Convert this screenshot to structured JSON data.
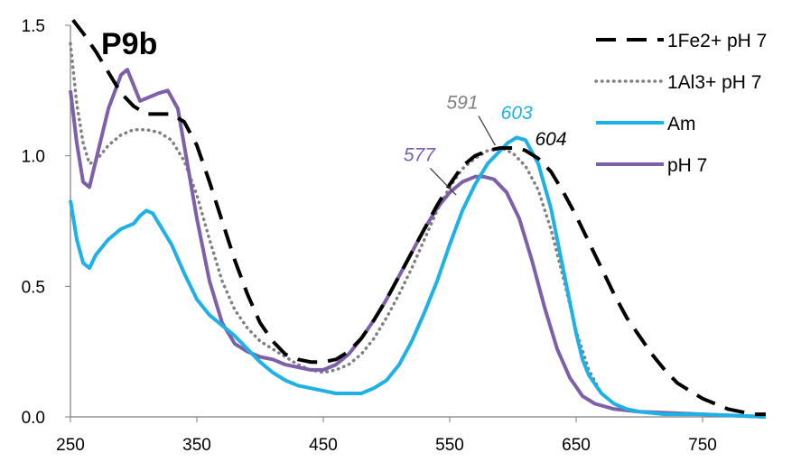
{
  "chart_data": {
    "type": "line",
    "title": "P9b",
    "xlabel": "",
    "ylabel": "",
    "xlim": [
      250,
      800
    ],
    "ylim": [
      0,
      1.5
    ],
    "x_ticks": [
      "250",
      "350",
      "450",
      "550",
      "650",
      "750"
    ],
    "y_ticks": [
      "0.0",
      "0.5",
      "1.0",
      "1.5"
    ],
    "grid": false,
    "legend_position": "top-right",
    "series": [
      {
        "name": "1Fe2+ pH 7",
        "color": "#000000",
        "style": "dashed",
        "points": [
          [
            252,
            1.52
          ],
          [
            260,
            1.47
          ],
          [
            270,
            1.4
          ],
          [
            280,
            1.32
          ],
          [
            290,
            1.24
          ],
          [
            300,
            1.19
          ],
          [
            310,
            1.16
          ],
          [
            320,
            1.16
          ],
          [
            330,
            1.16
          ],
          [
            340,
            1.13
          ],
          [
            350,
            1.04
          ],
          [
            360,
            0.9
          ],
          [
            370,
            0.75
          ],
          [
            380,
            0.6
          ],
          [
            390,
            0.47
          ],
          [
            400,
            0.36
          ],
          [
            410,
            0.29
          ],
          [
            420,
            0.24
          ],
          [
            430,
            0.22
          ],
          [
            440,
            0.21
          ],
          [
            450,
            0.21
          ],
          [
            460,
            0.22
          ],
          [
            470,
            0.25
          ],
          [
            480,
            0.3
          ],
          [
            490,
            0.37
          ],
          [
            500,
            0.45
          ],
          [
            510,
            0.54
          ],
          [
            520,
            0.63
          ],
          [
            530,
            0.72
          ],
          [
            540,
            0.81
          ],
          [
            550,
            0.89
          ],
          [
            560,
            0.96
          ],
          [
            570,
            1.0
          ],
          [
            580,
            1.02
          ],
          [
            590,
            1.03
          ],
          [
            600,
            1.03
          ],
          [
            604,
            1.03
          ],
          [
            610,
            1.02
          ],
          [
            620,
            0.99
          ],
          [
            630,
            0.94
          ],
          [
            640,
            0.86
          ],
          [
            650,
            0.77
          ],
          [
            660,
            0.67
          ],
          [
            670,
            0.57
          ],
          [
            680,
            0.47
          ],
          [
            690,
            0.38
          ],
          [
            700,
            0.31
          ],
          [
            710,
            0.24
          ],
          [
            720,
            0.18
          ],
          [
            730,
            0.13
          ],
          [
            740,
            0.1
          ],
          [
            750,
            0.07
          ],
          [
            760,
            0.05
          ],
          [
            770,
            0.03
          ],
          [
            780,
            0.02
          ],
          [
            790,
            0.01
          ],
          [
            800,
            0.01
          ]
        ]
      },
      {
        "name": "1Al3+ pH 7",
        "color": "#808080",
        "style": "dotted",
        "points": [
          [
            250,
            1.43
          ],
          [
            255,
            1.2
          ],
          [
            260,
            1.05
          ],
          [
            265,
            0.97
          ],
          [
            270,
            0.98
          ],
          [
            280,
            1.04
          ],
          [
            290,
            1.08
          ],
          [
            300,
            1.1
          ],
          [
            310,
            1.1
          ],
          [
            320,
            1.09
          ],
          [
            330,
            1.06
          ],
          [
            340,
            0.98
          ],
          [
            350,
            0.85
          ],
          [
            360,
            0.68
          ],
          [
            370,
            0.52
          ],
          [
            380,
            0.41
          ],
          [
            390,
            0.34
          ],
          [
            400,
            0.29
          ],
          [
            410,
            0.26
          ],
          [
            420,
            0.23
          ],
          [
            430,
            0.2
          ],
          [
            440,
            0.18
          ],
          [
            450,
            0.17
          ],
          [
            460,
            0.18
          ],
          [
            470,
            0.2
          ],
          [
            480,
            0.24
          ],
          [
            490,
            0.3
          ],
          [
            500,
            0.38
          ],
          [
            510,
            0.47
          ],
          [
            520,
            0.57
          ],
          [
            530,
            0.68
          ],
          [
            540,
            0.79
          ],
          [
            550,
            0.88
          ],
          [
            560,
            0.95
          ],
          [
            570,
            0.99
          ],
          [
            580,
            1.02
          ],
          [
            591,
            1.03
          ],
          [
            600,
            1.01
          ],
          [
            610,
            0.96
          ],
          [
            620,
            0.87
          ],
          [
            630,
            0.72
          ],
          [
            640,
            0.53
          ],
          [
            650,
            0.33
          ],
          [
            660,
            0.18
          ],
          [
            670,
            0.09
          ],
          [
            680,
            0.05
          ],
          [
            690,
            0.03
          ],
          [
            700,
            0.02
          ],
          [
            720,
            0.01
          ],
          [
            750,
            0.01
          ],
          [
            800,
            0.0
          ]
        ]
      },
      {
        "name": "Am",
        "color": "#1EB1E6",
        "style": "solid",
        "points": [
          [
            250,
            0.83
          ],
          [
            255,
            0.68
          ],
          [
            260,
            0.59
          ],
          [
            265,
            0.57
          ],
          [
            270,
            0.62
          ],
          [
            280,
            0.68
          ],
          [
            290,
            0.72
          ],
          [
            300,
            0.74
          ],
          [
            305,
            0.77
          ],
          [
            310,
            0.79
          ],
          [
            315,
            0.78
          ],
          [
            320,
            0.74
          ],
          [
            330,
            0.66
          ],
          [
            340,
            0.55
          ],
          [
            350,
            0.45
          ],
          [
            360,
            0.39
          ],
          [
            370,
            0.35
          ],
          [
            380,
            0.31
          ],
          [
            390,
            0.26
          ],
          [
            400,
            0.21
          ],
          [
            410,
            0.17
          ],
          [
            420,
            0.14
          ],
          [
            430,
            0.12
          ],
          [
            440,
            0.11
          ],
          [
            450,
            0.1
          ],
          [
            460,
            0.09
          ],
          [
            470,
            0.09
          ],
          [
            480,
            0.09
          ],
          [
            490,
            0.11
          ],
          [
            500,
            0.14
          ],
          [
            510,
            0.2
          ],
          [
            520,
            0.29
          ],
          [
            530,
            0.4
          ],
          [
            540,
            0.52
          ],
          [
            550,
            0.66
          ],
          [
            560,
            0.79
          ],
          [
            570,
            0.89
          ],
          [
            580,
            0.97
          ],
          [
            590,
            1.02
          ],
          [
            596,
            1.05
          ],
          [
            603,
            1.07
          ],
          [
            610,
            1.06
          ],
          [
            620,
            0.97
          ],
          [
            630,
            0.8
          ],
          [
            640,
            0.56
          ],
          [
            650,
            0.32
          ],
          [
            655,
            0.22
          ],
          [
            660,
            0.16
          ],
          [
            670,
            0.09
          ],
          [
            680,
            0.05
          ],
          [
            690,
            0.03
          ],
          [
            700,
            0.02
          ],
          [
            720,
            0.01
          ],
          [
            750,
            0.01
          ],
          [
            800,
            0.0
          ]
        ]
      },
      {
        "name": "pH 7",
        "color": "#7C60A8",
        "style": "solid",
        "points": [
          [
            250,
            1.25
          ],
          [
            255,
            1.05
          ],
          [
            260,
            0.9
          ],
          [
            265,
            0.88
          ],
          [
            270,
            0.98
          ],
          [
            280,
            1.18
          ],
          [
            290,
            1.31
          ],
          [
            295,
            1.33
          ],
          [
            300,
            1.27
          ],
          [
            305,
            1.21
          ],
          [
            310,
            1.22
          ],
          [
            320,
            1.24
          ],
          [
            327,
            1.25
          ],
          [
            335,
            1.18
          ],
          [
            340,
            1.04
          ],
          [
            350,
            0.76
          ],
          [
            360,
            0.52
          ],
          [
            370,
            0.36
          ],
          [
            380,
            0.28
          ],
          [
            390,
            0.25
          ],
          [
            400,
            0.23
          ],
          [
            410,
            0.22
          ],
          [
            420,
            0.2
          ],
          [
            430,
            0.19
          ],
          [
            440,
            0.18
          ],
          [
            450,
            0.18
          ],
          [
            460,
            0.2
          ],
          [
            470,
            0.24
          ],
          [
            480,
            0.3
          ],
          [
            490,
            0.37
          ],
          [
            500,
            0.45
          ],
          [
            510,
            0.54
          ],
          [
            520,
            0.63
          ],
          [
            530,
            0.72
          ],
          [
            540,
            0.8
          ],
          [
            550,
            0.86
          ],
          [
            560,
            0.9
          ],
          [
            570,
            0.92
          ],
          [
            577,
            0.92
          ],
          [
            585,
            0.91
          ],
          [
            595,
            0.86
          ],
          [
            605,
            0.76
          ],
          [
            615,
            0.6
          ],
          [
            625,
            0.42
          ],
          [
            635,
            0.26
          ],
          [
            645,
            0.15
          ],
          [
            655,
            0.08
          ],
          [
            665,
            0.05
          ],
          [
            680,
            0.03
          ],
          [
            700,
            0.02
          ],
          [
            750,
            0.01
          ],
          [
            800,
            0.0
          ]
        ]
      }
    ],
    "annotations": [
      {
        "text": "591",
        "color": "#808080",
        "label_xy": [
          560,
          1.18
        ],
        "target_xy": [
          586,
          1.04
        ]
      },
      {
        "text": "603",
        "color": "#1EB1E6",
        "label_xy": [
          603,
          1.14
        ],
        "target_xy": [
          603,
          1.08
        ]
      },
      {
        "text": "604",
        "color": "#000000",
        "label_xy": [
          630,
          1.04
        ],
        "target_xy": [
          606,
          1.03
        ]
      },
      {
        "text": "577",
        "color": "#7C60A8",
        "label_xy": [
          526,
          0.98
        ],
        "target_xy": [
          555,
          0.85
        ]
      }
    ]
  }
}
